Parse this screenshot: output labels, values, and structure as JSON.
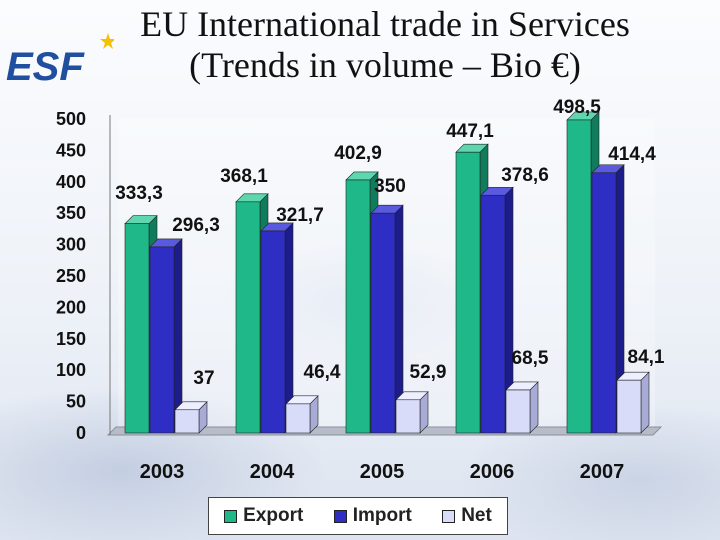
{
  "title": {
    "line1": "EU International trade in Services",
    "line2": "(Trends in volume – Bio €)"
  },
  "logo": {
    "text": "ESF",
    "colors": {
      "letters": "#1f4f9e",
      "star": "#f2c200"
    }
  },
  "colors": {
    "export": "#1fb889",
    "import": "#2e2ec4",
    "net": "#d9dcf8",
    "axis_text": "#111111"
  },
  "chart_data": {
    "type": "bar",
    "categories": [
      "2003",
      "2004",
      "2005",
      "2006",
      "2007"
    ],
    "series": [
      {
        "name": "Export",
        "values": [
          333.3,
          368.1,
          402.9,
          447.1,
          498.5
        ],
        "labels": [
          "333,3",
          "368,1",
          "402,9",
          "447,1",
          "498,5"
        ]
      },
      {
        "name": "Import",
        "values": [
          296.3,
          321.7,
          350,
          378.6,
          414.4
        ],
        "labels": [
          "296,3",
          "321,7",
          "350",
          "378,6",
          "414,4"
        ]
      },
      {
        "name": "Net",
        "values": [
          37,
          46.4,
          52.9,
          68.5,
          84.1
        ],
        "labels": [
          "37",
          "46,4",
          "52,9",
          "68,5",
          "84,1"
        ]
      }
    ],
    "ylim": [
      0,
      500
    ],
    "yticks": [
      "0",
      "50",
      "100",
      "150",
      "200",
      "250",
      "300",
      "350",
      "400",
      "450",
      "500"
    ],
    "grid": false,
    "legend_position": "bottom"
  },
  "legend": [
    {
      "label": "Export",
      "color": "#1fb889"
    },
    {
      "label": "Import",
      "color": "#2e2ec4"
    },
    {
      "label": "Net",
      "color": "#d9dcf8"
    }
  ]
}
